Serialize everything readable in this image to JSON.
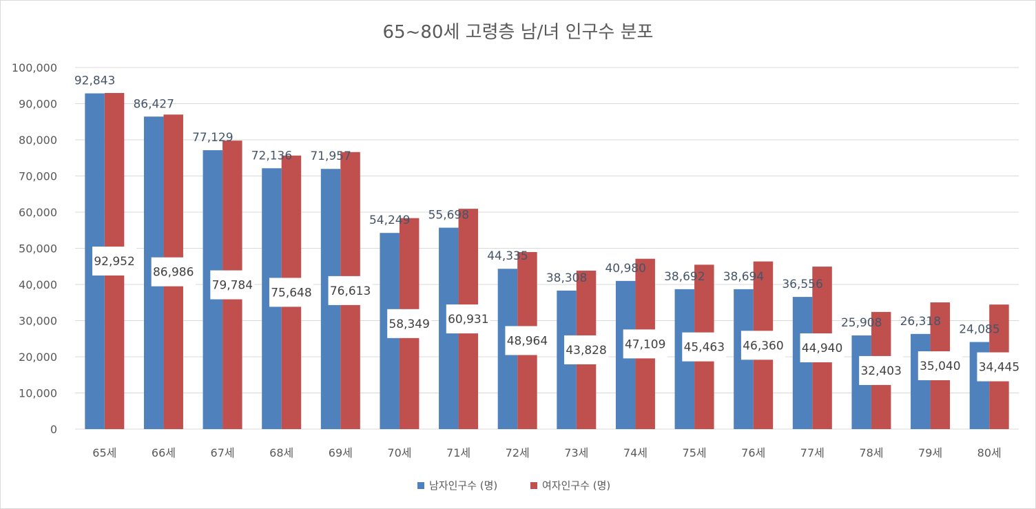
{
  "chart_data": {
    "type": "bar",
    "title": "65~80세 고령층 남/녀 인구수 분포",
    "xlabel": "",
    "ylabel": "",
    "ylim": [
      0,
      100000
    ],
    "yticks": [
      0,
      10000,
      20000,
      30000,
      40000,
      50000,
      60000,
      70000,
      80000,
      90000,
      100000
    ],
    "ytick_labels": [
      "0",
      "10,000",
      "20,000",
      "30,000",
      "40,000",
      "50,000",
      "60,000",
      "70,000",
      "80,000",
      "90,000",
      "100,000"
    ],
    "grid": true,
    "legend_position": "bottom",
    "categories": [
      "65세",
      "66세",
      "67세",
      "68세",
      "69세",
      "70세",
      "71세",
      "72세",
      "73세",
      "74세",
      "75세",
      "76세",
      "77세",
      "78세",
      "79세",
      "80세"
    ],
    "series": [
      {
        "name": "남자인구수 (명)",
        "color": "#4f81bd",
        "values": [
          92843,
          86427,
          77129,
          72136,
          71957,
          54249,
          55698,
          44335,
          38308,
          40980,
          38692,
          38694,
          36556,
          25908,
          26318,
          24085
        ],
        "labels": [
          "92,843",
          "86,427",
          "77,129",
          "72,136",
          "71,957",
          "54,249",
          "55,698",
          "44,335",
          "38,308",
          "40,980",
          "38,692",
          "38,694",
          "36,556",
          "25,908",
          "26,318",
          "24,085"
        ]
      },
      {
        "name": "여자인구수 (명)",
        "color": "#c0504d",
        "values": [
          92952,
          86986,
          79784,
          75648,
          76613,
          58349,
          60931,
          48964,
          43828,
          47109,
          45463,
          46360,
          44940,
          32403,
          35040,
          34445
        ],
        "labels": [
          "92,952",
          "86,986",
          "79,784",
          "75,648",
          "76,613",
          "58,349",
          "60,931",
          "48,964",
          "43,828",
          "47,109",
          "45,463",
          "46,360",
          "44,940",
          "32,403",
          "35,040",
          "34,445"
        ]
      }
    ]
  }
}
